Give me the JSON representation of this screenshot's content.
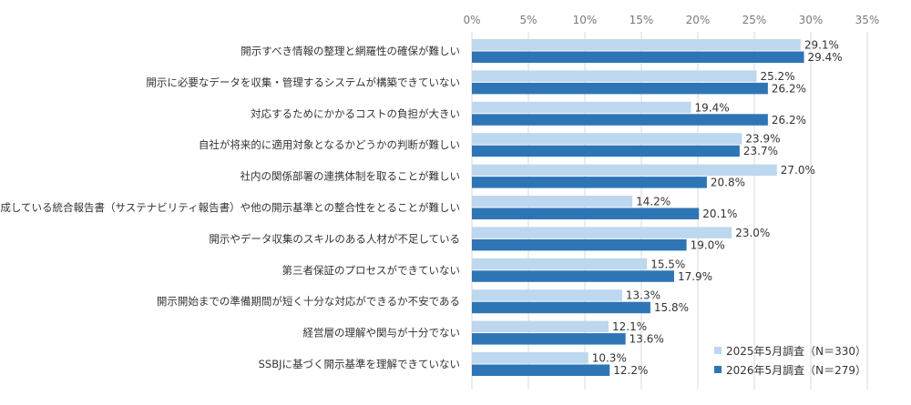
{
  "chart_data": {
    "type": "bar",
    "orientation": "horizontal",
    "title": "",
    "xlabel": "",
    "ylabel": "",
    "xlim": [
      0,
      35
    ],
    "ticks": [
      "0%",
      "5%",
      "10%",
      "15%",
      "20%",
      "25%",
      "30%",
      "35%"
    ],
    "tick_values": [
      0,
      5,
      10,
      15,
      20,
      25,
      30,
      35
    ],
    "grid": true,
    "legend_position": "bottom-right",
    "categories": [
      "開示すべき情報の整理と網羅性の確保が難しい",
      "開示に必要なデータを収集・管理するシステムが構築できていない",
      "対応するためにかかるコストの負担が大きい",
      "自社が将来的に適用対象となるかどうかの判断が難しい",
      "社内の関係部署の連携体制を取ることが難しい",
      "現在作成している統合報告書（サステナビリティ報告書）や他の開示基準との整合性をとることが難しい",
      "開示やデータ収集のスキルのある人材が不足している",
      "第三者保証のプロセスができていない",
      "開示開始までの準備期間が短く十分な対応ができるか不安である",
      "経営層の理解や関与が十分でない",
      "SSBJに基づく開示基準を理解できていない"
    ],
    "series": [
      {
        "name": "2025年5月調査（N＝330）",
        "color": "#bdd7ee",
        "values": [
          29.1,
          25.2,
          19.4,
          23.9,
          27.0,
          14.2,
          23.0,
          15.5,
          13.3,
          12.1,
          10.3
        ]
      },
      {
        "name": "2026年5月調査（N＝279）",
        "color": "#2e75b6",
        "values": [
          29.4,
          26.2,
          26.2,
          23.7,
          20.8,
          20.1,
          19.0,
          17.9,
          15.8,
          13.6,
          12.2
        ]
      }
    ]
  }
}
